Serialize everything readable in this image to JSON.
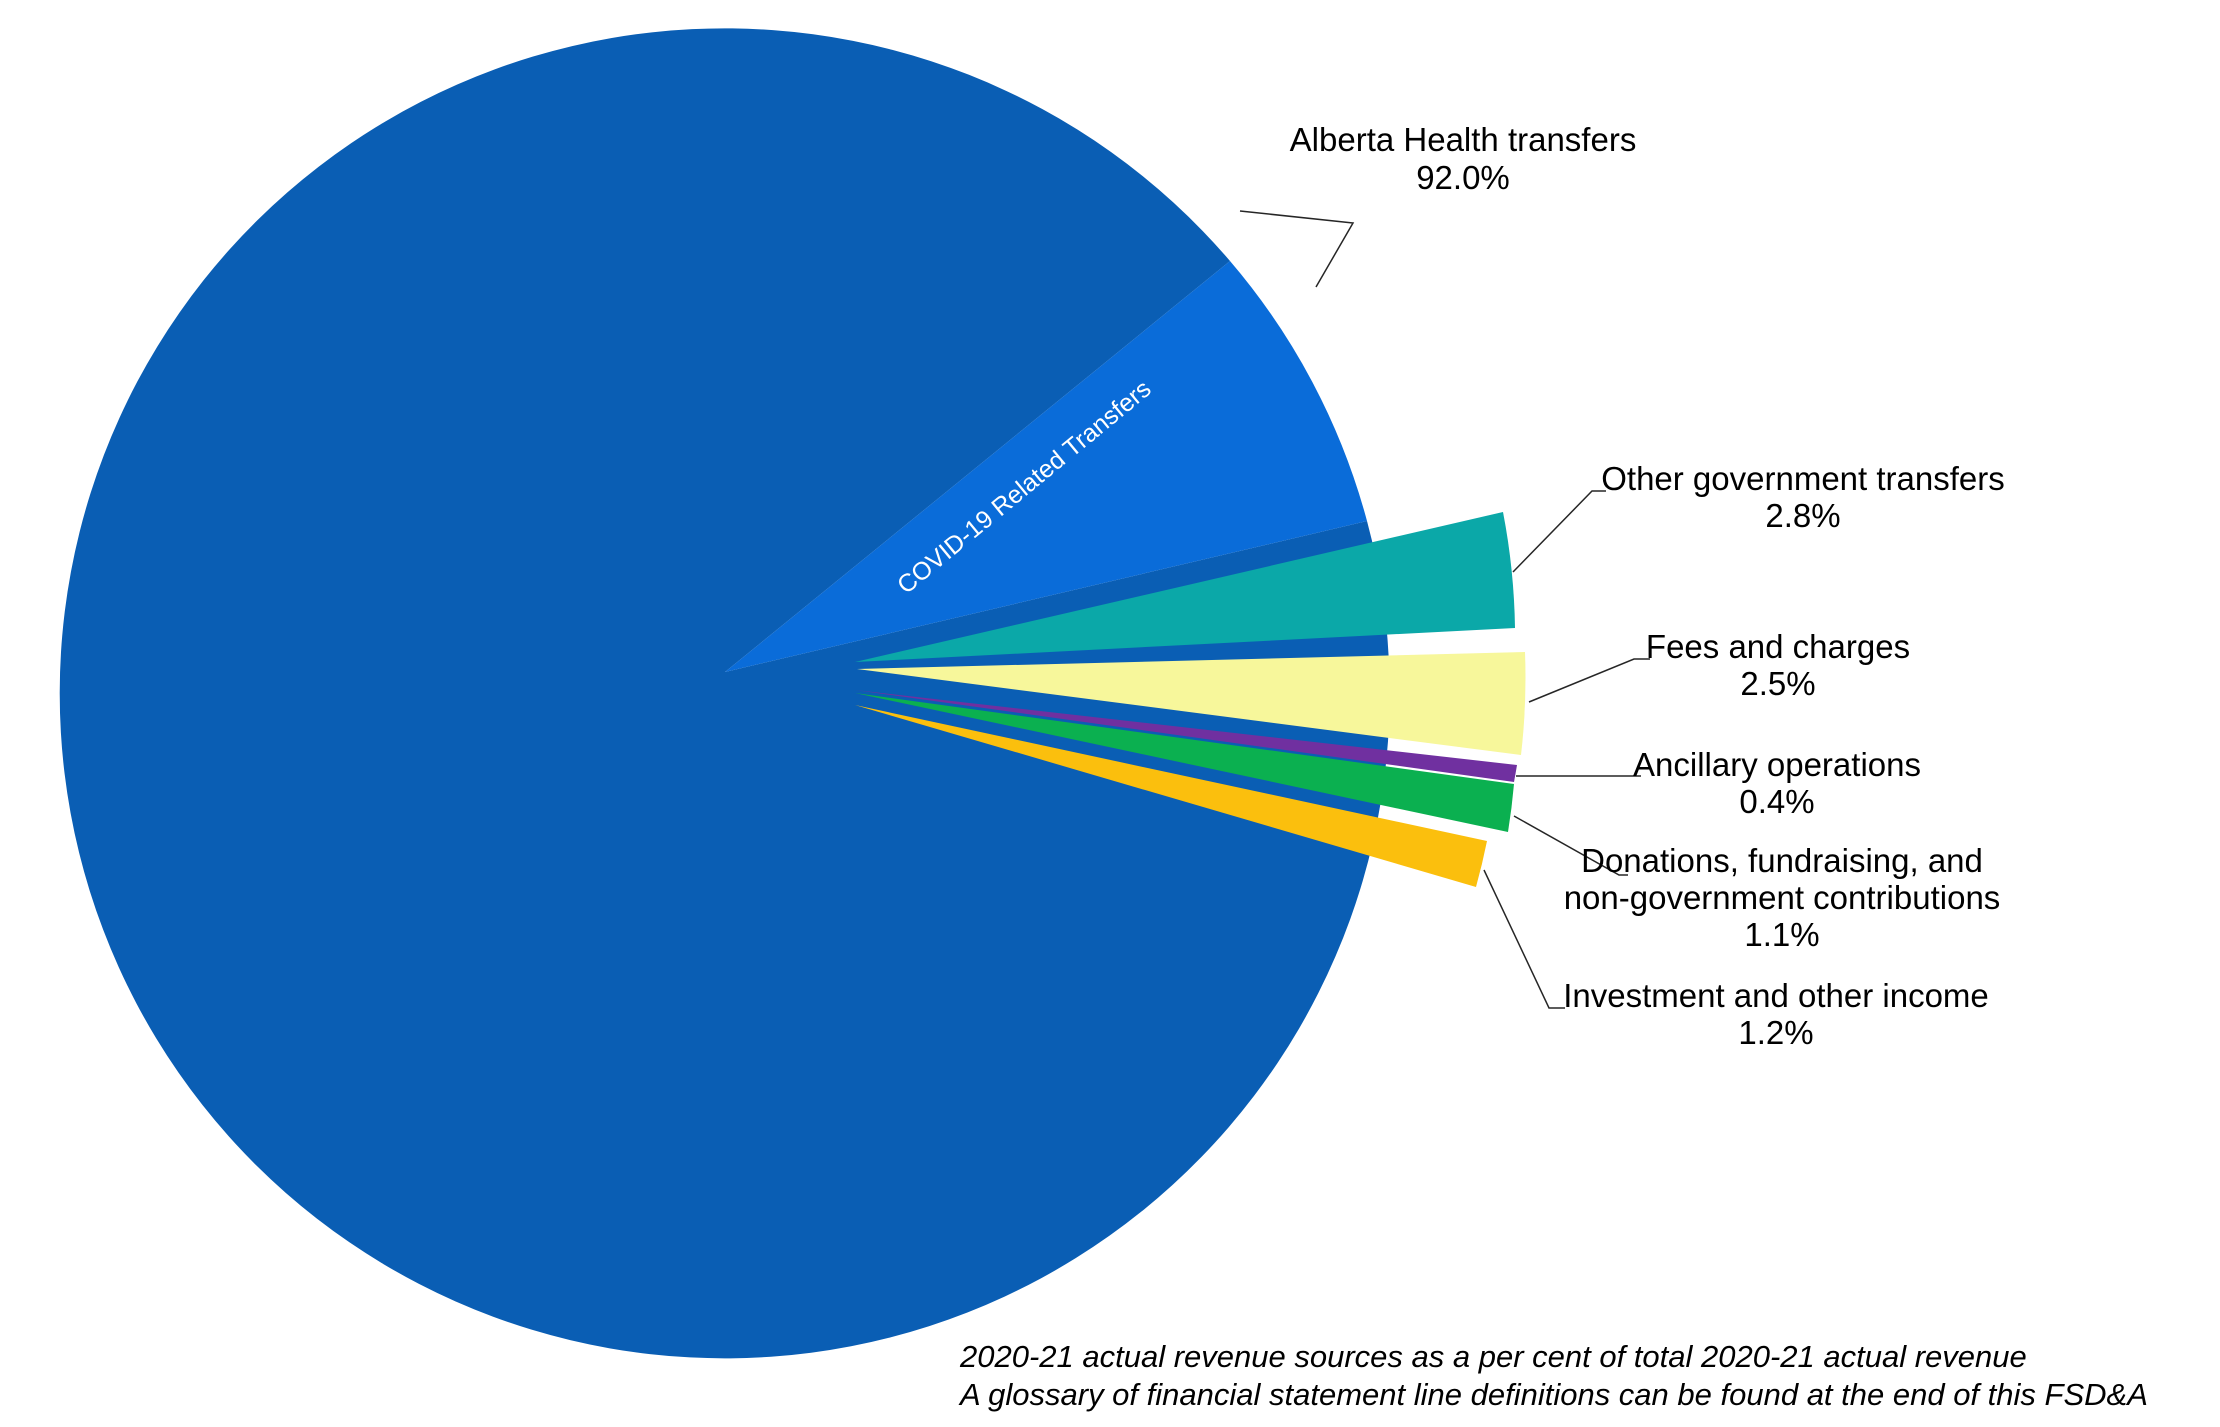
{
  "chart_data": {
    "type": "pie",
    "slices": [
      {
        "label": "Alberta Health transfers",
        "value_label": "92.0%",
        "value": 92.0,
        "color": "#0A5EB4",
        "sub_slice": {
          "label": "COVID-19 Related Transfers",
          "color": "#0A6CD9"
        }
      },
      {
        "label": "Other government transfers",
        "value_label": "2.8%",
        "value": 2.8,
        "color": "#0BA8A8"
      },
      {
        "label": "Fees and charges",
        "value_label": "2.5%",
        "value": 2.5,
        "color": "#F7F79B"
      },
      {
        "label": "Ancillary operations",
        "value_label": "0.4%",
        "value": 0.4,
        "color": "#7030A0"
      },
      {
        "label": "Donations, fundraising, and non-government contributions",
        "label_lines": [
          "Donations, fundraising, and",
          "non-government contributions"
        ],
        "value_label": "1.1%",
        "value": 1.1,
        "color": "#0BB050"
      },
      {
        "label": "Investment and other income",
        "value_label": "1.2%",
        "value": 1.2,
        "color": "#FBBF0D"
      }
    ],
    "legend": "none"
  },
  "footnote": {
    "line1": "2020-21 actual revenue sources as a per cent of total 2020-21 actual revenue",
    "line2": "A glossary of financial statement line definitions can be found at the end of this FSD&A"
  }
}
